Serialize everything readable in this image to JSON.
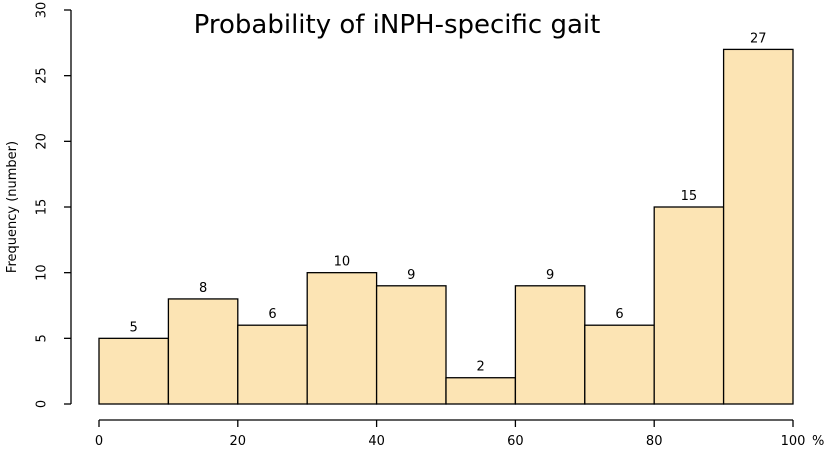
{
  "chart_data": {
    "type": "bar",
    "title": "Probability of iNPH-specific gait",
    "ylabel": "Frequency (number)",
    "xunit": "%",
    "bin_edges": [
      0,
      10,
      20,
      30,
      40,
      50,
      60,
      70,
      80,
      90,
      100
    ],
    "values": [
      5,
      8,
      6,
      10,
      9,
      2,
      9,
      6,
      15,
      27
    ],
    "xlim": [
      0,
      100
    ],
    "ylim": [
      0,
      30
    ],
    "xticks": [
      0,
      20,
      40,
      60,
      80,
      100
    ],
    "yticks": [
      0,
      5,
      10,
      15,
      20,
      25,
      30
    ],
    "bar_color": "#FCE4B4",
    "grid": false
  }
}
